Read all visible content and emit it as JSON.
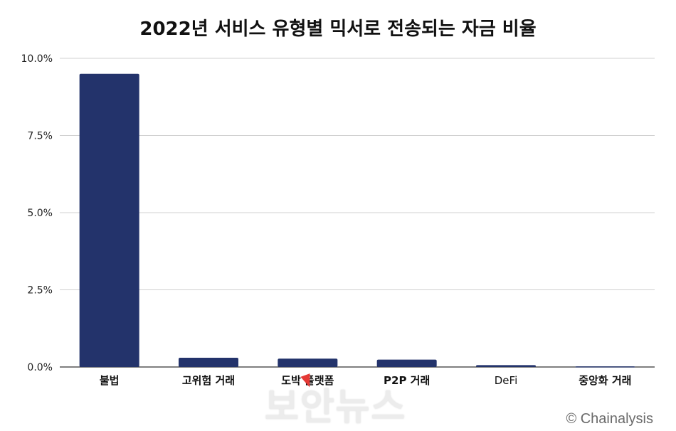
{
  "chart_data": {
    "type": "bar",
    "title": "2022년 서비스 유형별 믹서로 전송되는 자금 비율",
    "categories": [
      "불법",
      "고위험 거래",
      "도박 플랫폼",
      "P2P 거래",
      "DeFi",
      "중앙화 거래"
    ],
    "values": [
      9.5,
      0.3,
      0.27,
      0.24,
      0.06,
      0.02
    ],
    "unit": "%",
    "ylim": [
      0,
      10
    ],
    "yticks": [
      "0.0%",
      "2.5%",
      "5.0%",
      "7.5%",
      "10.0%"
    ],
    "ytick_values": [
      0,
      2.5,
      5,
      7.5,
      10
    ],
    "grid": true,
    "xlabel": "",
    "ylabel": "",
    "bar_color": "#23336b",
    "grid_color": "#d0d0d0"
  },
  "credit": "© Chainalysis",
  "watermark": "보안뉴스"
}
